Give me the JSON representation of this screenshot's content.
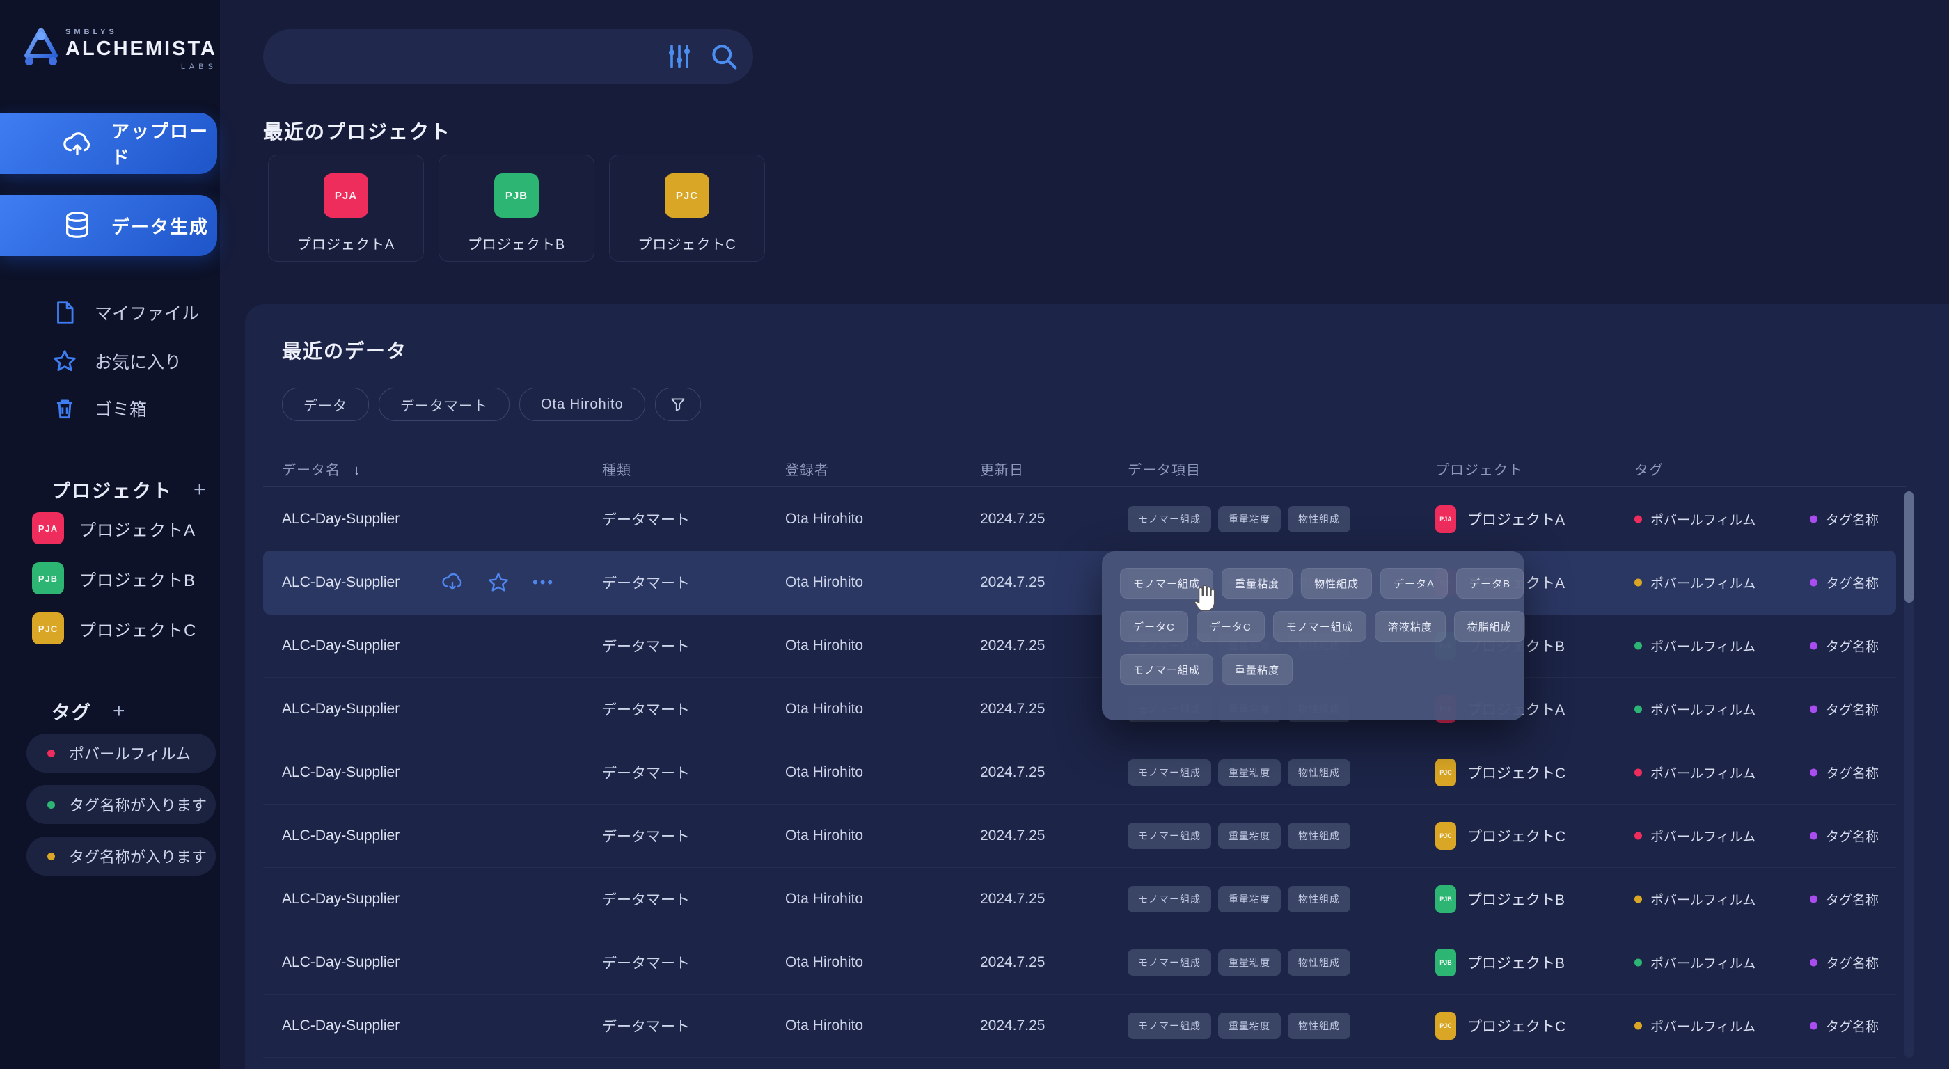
{
  "brand": {
    "top": "SMBLYS",
    "name": "ALCHEMISTA",
    "sub": "LABS"
  },
  "colors": {
    "accent_blue": "#3f7df2",
    "pink": "#ee2d5d",
    "green": "#2cb573",
    "gold": "#d9a625",
    "purple": "#a94df0"
  },
  "sidebar": {
    "primary": [
      {
        "label": "アップロード",
        "icon": "cloud-upload-icon"
      },
      {
        "label": "データ生成",
        "icon": "database-icon"
      }
    ],
    "menu": [
      {
        "label": "マイファイル",
        "icon": "file-icon"
      },
      {
        "label": "お気に入り",
        "icon": "star-icon"
      },
      {
        "label": "ゴミ箱",
        "icon": "trash-icon"
      }
    ],
    "projects_header": "プロジェクト",
    "projects_add": "+",
    "projects": [
      {
        "code": "PJA",
        "label": "プロジェクトA",
        "color": "#ee2d5d"
      },
      {
        "code": "PJB",
        "label": "プロジェクトB",
        "color": "#2cb573"
      },
      {
        "code": "PJC",
        "label": "プロジェクトC",
        "color": "#d9a625"
      }
    ],
    "tags_header": "タグ",
    "tags_add": "+",
    "tags": [
      {
        "label": "ポバールフィルム",
        "color": "#ee2d5d"
      },
      {
        "label": "タグ名称が入ります",
        "color": "#2cb573"
      },
      {
        "label": "タグ名称が入ります",
        "color": "#d9a625"
      }
    ]
  },
  "search": {
    "value": "",
    "placeholder": ""
  },
  "recent_projects": {
    "title": "最近のプロジェクト",
    "cards": [
      {
        "code": "PJA",
        "label": "プロジェクトA",
        "color": "#ee2d5d"
      },
      {
        "code": "PJB",
        "label": "プロジェクトB",
        "color": "#2cb573"
      },
      {
        "code": "PJC",
        "label": "プロジェクトC",
        "color": "#d9a625"
      }
    ]
  },
  "recent_data": {
    "title": "最近のデータ",
    "filters": [
      "データ",
      "データマート",
      "Ota Hirohito"
    ],
    "columns": [
      "データ名",
      "種類",
      "登録者",
      "更新日",
      "データ項目",
      "プロジェクト",
      "タグ"
    ],
    "sort_icon": "↓",
    "rows": [
      {
        "name": "ALC-Day-Supplier",
        "type": "データマート",
        "owner": "Ota Hirohito",
        "updated": "2024.7.25",
        "items": [
          "モノマー組成",
          "重量粘度",
          "物性組成"
        ],
        "highlighted": false,
        "project": {
          "code": "PJA",
          "label": "プロジェクトA",
          "color": "#ee2d5d"
        },
        "tags": [
          {
            "label": "ポバールフィルム",
            "color": "#ee2d5d"
          },
          {
            "label": "タグ名称",
            "color": "#a94df0"
          }
        ]
      },
      {
        "name": "ALC-Day-Supplier",
        "type": "データマート",
        "owner": "Ota Hirohito",
        "updated": "2024.7.25",
        "items": [
          "モノマー組成",
          "重量粘度",
          "物性組成"
        ],
        "highlighted": true,
        "project": {
          "code": "PJA",
          "label": "プロジェクトA",
          "color": "#ee2d5d"
        },
        "tags": [
          {
            "label": "ポバールフィルム",
            "color": "#d9a625"
          },
          {
            "label": "タグ名称",
            "color": "#a94df0"
          }
        ]
      },
      {
        "name": "ALC-Day-Supplier",
        "type": "データマート",
        "owner": "Ota Hirohito",
        "updated": "2024.7.25",
        "items": [
          "モノマー組成",
          "重量粘度",
          "物性組成"
        ],
        "highlighted": false,
        "project": {
          "code": "PJB",
          "label": "プロジェクトB",
          "color": "#2cb573"
        },
        "tags": [
          {
            "label": "ポバールフィルム",
            "color": "#2cb573"
          },
          {
            "label": "タグ名称",
            "color": "#a94df0"
          }
        ]
      },
      {
        "name": "ALC-Day-Supplier",
        "type": "データマート",
        "owner": "Ota Hirohito",
        "updated": "2024.7.25",
        "items": [
          "モノマー組成",
          "重量粘度",
          "物性組成"
        ],
        "highlighted": false,
        "project": {
          "code": "PJA",
          "label": "プロジェクトA",
          "color": "#ee2d5d"
        },
        "tags": [
          {
            "label": "ポバールフィルム",
            "color": "#2cb573"
          },
          {
            "label": "タグ名称",
            "color": "#a94df0"
          }
        ]
      },
      {
        "name": "ALC-Day-Supplier",
        "type": "データマート",
        "owner": "Ota Hirohito",
        "updated": "2024.7.25",
        "items": [
          "モノマー組成",
          "重量粘度",
          "物性組成"
        ],
        "highlighted": false,
        "project": {
          "code": "PJC",
          "label": "プロジェクトC",
          "color": "#d9a625"
        },
        "tags": [
          {
            "label": "ポバールフィルム",
            "color": "#ee2d5d"
          },
          {
            "label": "タグ名称",
            "color": "#a94df0"
          }
        ]
      },
      {
        "name": "ALC-Day-Supplier",
        "type": "データマート",
        "owner": "Ota Hirohito",
        "updated": "2024.7.25",
        "items": [
          "モノマー組成",
          "重量粘度",
          "物性組成"
        ],
        "highlighted": false,
        "project": {
          "code": "PJC",
          "label": "プロジェクトC",
          "color": "#d9a625"
        },
        "tags": [
          {
            "label": "ポバールフィルム",
            "color": "#ee2d5d"
          },
          {
            "label": "タグ名称",
            "color": "#a94df0"
          }
        ]
      },
      {
        "name": "ALC-Day-Supplier",
        "type": "データマート",
        "owner": "Ota Hirohito",
        "updated": "2024.7.25",
        "items": [
          "モノマー組成",
          "重量粘度",
          "物性組成"
        ],
        "highlighted": false,
        "project": {
          "code": "PJB",
          "label": "プロジェクトB",
          "color": "#2cb573"
        },
        "tags": [
          {
            "label": "ポバールフィルム",
            "color": "#d9a625"
          },
          {
            "label": "タグ名称",
            "color": "#a94df0"
          }
        ]
      },
      {
        "name": "ALC-Day-Supplier",
        "type": "データマート",
        "owner": "Ota Hirohito",
        "updated": "2024.7.25",
        "items": [
          "モノマー組成",
          "重量粘度",
          "物性組成"
        ],
        "highlighted": false,
        "project": {
          "code": "PJB",
          "label": "プロジェクトB",
          "color": "#2cb573"
        },
        "tags": [
          {
            "label": "ポバールフィルム",
            "color": "#2cb573"
          },
          {
            "label": "タグ名称",
            "color": "#a94df0"
          }
        ]
      },
      {
        "name": "ALC-Day-Supplier",
        "type": "データマート",
        "owner": "Ota Hirohito",
        "updated": "2024.7.25",
        "items": [
          "モノマー組成",
          "重量粘度",
          "物性組成"
        ],
        "highlighted": false,
        "project": {
          "code": "PJC",
          "label": "プロジェクトC",
          "color": "#d9a625"
        },
        "tags": [
          {
            "label": "ポバールフィルム",
            "color": "#d9a625"
          },
          {
            "label": "タグ名称",
            "color": "#a94df0"
          }
        ]
      }
    ],
    "row_actions": [
      "cloud-download-icon",
      "star-icon",
      "more-icon"
    ]
  },
  "popup": {
    "chip_rows": [
      [
        "モノマー組成",
        "重量粘度",
        "物性組成",
        "データA",
        "データB"
      ],
      [
        "データC",
        "データC",
        "モノマー組成",
        "溶液粘度",
        "樹脂組成"
      ],
      [
        "モノマー組成",
        "重量粘度"
      ]
    ]
  }
}
